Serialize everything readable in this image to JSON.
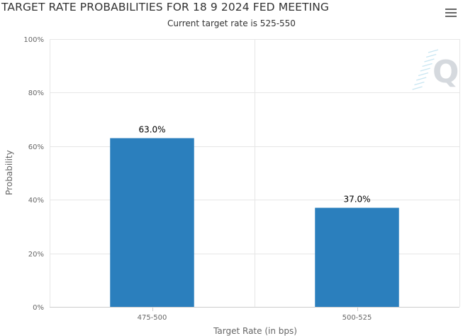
{
  "header": {
    "title": "TARGET RATE PROBABILITIES FOR 18 9 2024 FED MEETING",
    "subtitle": "Current target rate is 525-550"
  },
  "menu": {
    "icon": "hamburger-menu-icon"
  },
  "watermark": {
    "text": "Q",
    "icon": "quikstrike-logo-icon"
  },
  "colors": {
    "bar": "#2b7fbd",
    "grid": "#e6e6e6",
    "axis": "#cccccc"
  },
  "chart_data": {
    "type": "bar",
    "title": "TARGET RATE PROBABILITIES FOR 18 9 2024 FED MEETING",
    "subtitle": "Current target rate is 525-550",
    "categories": [
      "475-500",
      "500-525"
    ],
    "values": [
      63.0,
      37.0
    ],
    "data_labels": [
      "63.0%",
      "37.0%"
    ],
    "xlabel": "Target Rate (in bps)",
    "ylabel": "Probability",
    "ylim": [
      0,
      100
    ],
    "yticks": [
      0,
      20,
      40,
      60,
      80,
      100
    ],
    "ytick_labels": [
      "0%",
      "20%",
      "40%",
      "60%",
      "80%",
      "100%"
    ],
    "grid": true,
    "legend": "none"
  }
}
